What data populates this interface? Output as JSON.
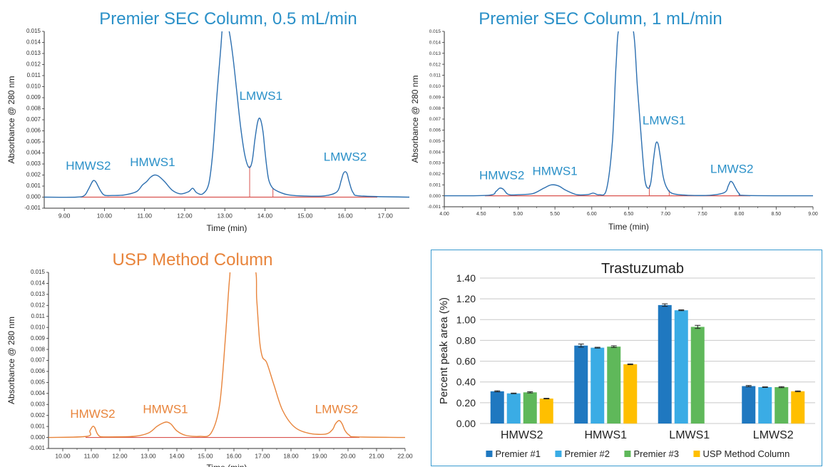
{
  "chart_data": [
    {
      "id": "a",
      "type": "line",
      "title": "Premier SEC Column, 0.5 mL/min",
      "xlabel": "Time (min)",
      "ylabel": "Absorbance @ 280 nm",
      "xlim": [
        8.5,
        17.6
      ],
      "ylim": [
        -0.001,
        0.015
      ],
      "xticks": [
        9.0,
        10.0,
        11.0,
        12.0,
        13.0,
        14.0,
        15.0,
        16.0,
        17.0
      ],
      "xtick_labels": [
        "9.00",
        "10.00",
        "11.00",
        "12.00",
        "13.00",
        "14.00",
        "15.00",
        "16.00",
        "17.00"
      ],
      "yticks": [
        -0.001,
        0.0,
        0.001,
        0.002,
        0.003,
        0.004,
        0.005,
        0.006,
        0.007,
        0.008,
        0.009,
        0.01,
        0.011,
        0.012,
        0.013,
        0.014,
        0.015
      ],
      "ytick_labels": [
        "-0.001",
        "0.000",
        "0.001",
        "0.002",
        "0.003",
        "0.004",
        "0.005",
        "0.006",
        "0.007",
        "0.008",
        "0.009",
        "0.010",
        "0.011",
        "0.012",
        "0.013",
        "0.014",
        "0.015"
      ],
      "baseline_range": [
        9.4,
        16.8
      ],
      "peak_markers": [
        13.62,
        14.2
      ],
      "x": [
        8.5,
        9.3,
        9.5,
        9.6,
        9.7,
        9.75,
        9.8,
        9.9,
        10.0,
        10.2,
        10.5,
        10.8,
        10.95,
        11.05,
        11.15,
        11.25,
        11.35,
        11.5,
        11.7,
        11.9,
        12.1,
        12.2,
        12.3,
        12.45,
        12.6,
        12.7,
        12.8,
        12.9,
        12.95,
        13.05,
        13.1,
        13.2,
        13.3,
        13.4,
        13.5,
        13.6,
        13.68,
        13.75,
        13.82,
        13.88,
        13.95,
        14.0,
        14.05,
        14.1,
        14.2,
        14.4,
        14.6,
        15.0,
        15.5,
        15.8,
        15.9,
        15.95,
        16.0,
        16.05,
        16.1,
        16.2,
        16.4,
        17.6
      ],
      "y": [
        0.0,
        0.0,
        0.00015,
        0.0007,
        0.0014,
        0.0015,
        0.0013,
        0.0006,
        0.00018,
        0.00015,
        0.0002,
        0.0005,
        0.0011,
        0.0014,
        0.0018,
        0.002,
        0.0019,
        0.0014,
        0.0006,
        0.0003,
        0.0005,
        0.0008,
        0.0004,
        0.0003,
        0.0012,
        0.004,
        0.009,
        0.0135,
        0.0155,
        0.0155,
        0.0152,
        0.0128,
        0.0095,
        0.0062,
        0.0038,
        0.0027,
        0.0032,
        0.0052,
        0.0068,
        0.0071,
        0.006,
        0.0042,
        0.0026,
        0.0015,
        0.0008,
        0.0004,
        0.0002,
        0.0001,
        0.00012,
        0.0005,
        0.0015,
        0.0021,
        0.0023,
        0.0021,
        0.0014,
        0.0004,
        0.0001,
        0.0
      ],
      "annotations": [
        {
          "text": "HMWS2",
          "x": 9.6,
          "y": 0.0025
        },
        {
          "text": "HMWS1",
          "x": 11.2,
          "y": 0.0028
        },
        {
          "text": "LMWS1",
          "x": 13.9,
          "y": 0.0088
        },
        {
          "text": "LMWS2",
          "x": 16.0,
          "y": 0.0033
        }
      ]
    },
    {
      "id": "b",
      "type": "line",
      "title": "Premier SEC Column, 1 mL/min",
      "xlabel": "Time (min)",
      "ylabel": "Absorbance @ 280 nm",
      "xlim": [
        4.0,
        9.0
      ],
      "ylim": [
        -0.001,
        0.015
      ],
      "xticks": [
        4.0,
        4.5,
        5.0,
        5.5,
        6.0,
        6.5,
        7.0,
        7.5,
        8.0,
        8.5,
        9.0
      ],
      "xtick_labels": [
        "4.00",
        "4.50",
        "5.00",
        "5.50",
        "6.00",
        "6.50",
        "7.00",
        "7.50",
        "8.00",
        "8.50",
        "9.00"
      ],
      "yticks": [
        -0.001,
        0.0,
        0.001,
        0.002,
        0.003,
        0.004,
        0.005,
        0.006,
        0.007,
        0.008,
        0.009,
        0.01,
        0.011,
        0.012,
        0.013,
        0.014,
        0.015
      ],
      "ytick_labels": [
        "-0.001",
        "0.000",
        "0.001",
        "0.002",
        "0.003",
        "0.004",
        "0.005",
        "0.006",
        "0.007",
        "0.008",
        "0.009",
        "0.010",
        "0.011",
        "0.012",
        "0.013",
        "0.014",
        "0.015"
      ],
      "baseline_range": [
        4.55,
        8.15
      ],
      "peak_markers": [
        6.78,
        7.05
      ],
      "x": [
        4.0,
        4.6,
        4.7,
        4.75,
        4.8,
        4.85,
        4.9,
        5.0,
        5.2,
        5.35,
        5.45,
        5.55,
        5.65,
        5.8,
        5.95,
        6.02,
        6.1,
        6.2,
        6.28,
        6.33,
        6.38,
        6.55,
        6.62,
        6.68,
        6.72,
        6.76,
        6.8,
        6.84,
        6.87,
        6.9,
        6.93,
        6.97,
        7.02,
        7.1,
        7.3,
        7.6,
        7.8,
        7.85,
        7.88,
        7.91,
        7.95,
        8.0,
        8.1,
        9.0
      ],
      "y": [
        0.0,
        5e-05,
        0.0004,
        0.0007,
        0.0006,
        0.0002,
        8e-05,
        0.0001,
        0.0002,
        0.0007,
        0.001,
        0.0009,
        0.0005,
        0.0001,
        0.00012,
        0.00025,
        0.0001,
        0.0006,
        0.005,
        0.012,
        0.0155,
        0.0155,
        0.0098,
        0.0045,
        0.0015,
        0.0007,
        0.0012,
        0.0035,
        0.0048,
        0.0047,
        0.0035,
        0.0017,
        0.0007,
        0.0002,
        5e-05,
        5e-05,
        0.0003,
        0.0009,
        0.0013,
        0.0012,
        0.0007,
        0.0002,
        3e-05,
        0.0
      ],
      "annotations": [
        {
          "text": "HMWS2",
          "x": 4.78,
          "y": 0.0015
        },
        {
          "text": "HMWS1",
          "x": 5.5,
          "y": 0.0019
        },
        {
          "text": "LMWS1",
          "x": 6.98,
          "y": 0.0065
        },
        {
          "text": "LMWS2",
          "x": 7.9,
          "y": 0.0021
        }
      ]
    },
    {
      "id": "c",
      "type": "line",
      "title": "USP Method Column",
      "xlabel": "Time (min)",
      "ylabel": "Absorbance @ 280 nm",
      "xlim": [
        9.5,
        22.0
      ],
      "ylim": [
        -0.001,
        0.015
      ],
      "xticks": [
        10.0,
        11.0,
        12.0,
        13.0,
        14.0,
        15.0,
        16.0,
        17.0,
        18.0,
        19.0,
        20.0,
        21.0,
        22.0
      ],
      "xtick_labels": [
        "10.00",
        "11.00",
        "12.00",
        "13.00",
        "14.00",
        "15.00",
        "16.00",
        "17.00",
        "18.00",
        "19.00",
        "20.00",
        "21.00",
        "22.00"
      ],
      "yticks": [
        -0.001,
        0.0,
        0.001,
        0.002,
        0.003,
        0.004,
        0.005,
        0.006,
        0.007,
        0.008,
        0.009,
        0.01,
        0.011,
        0.012,
        0.013,
        0.014,
        0.015
      ],
      "ytick_labels": [
        "-0.001",
        "0.000",
        "0.001",
        "0.002",
        "0.003",
        "0.004",
        "0.005",
        "0.006",
        "0.007",
        "0.008",
        "0.009",
        "0.010",
        "0.011",
        "0.012",
        "0.013",
        "0.014",
        "0.015"
      ],
      "baseline_range": [
        10.8,
        20.4
      ],
      "peak_markers": [],
      "x": [
        9.5,
        10.85,
        10.95,
        11.05,
        11.12,
        11.2,
        11.3,
        11.5,
        12.5,
        13.0,
        13.3,
        13.5,
        13.65,
        13.8,
        14.0,
        14.3,
        14.8,
        15.2,
        15.5,
        15.7,
        15.85,
        15.95,
        16.7,
        16.8,
        16.9,
        17.0,
        17.15,
        17.4,
        17.7,
        18.1,
        18.6,
        19.2,
        19.45,
        19.55,
        19.65,
        19.72,
        19.8,
        19.9,
        20.05,
        20.3,
        22.0
      ],
      "y": [
        0.0,
        0.0001,
        0.0006,
        0.001,
        0.0009,
        0.0004,
        0.0001,
        5e-05,
        0.0001,
        0.0004,
        0.001,
        0.0013,
        0.0014,
        0.0012,
        0.0006,
        0.0002,
        0.0001,
        0.0004,
        0.003,
        0.009,
        0.0145,
        0.0155,
        0.0155,
        0.0125,
        0.0088,
        0.0073,
        0.0068,
        0.0048,
        0.0025,
        0.001,
        0.0004,
        0.0003,
        0.0007,
        0.0012,
        0.0015,
        0.0015,
        0.0012,
        0.0006,
        0.0002,
        5e-05,
        0.0
      ],
      "annotations": [
        {
          "text": "HMWS2",
          "x": 11.05,
          "y": 0.0018
        },
        {
          "text": "HMWS1",
          "x": 13.6,
          "y": 0.0022
        },
        {
          "text": "LMWS2",
          "x": 19.6,
          "y": 0.0022
        }
      ]
    },
    {
      "id": "d",
      "type": "bar",
      "title": "Trastuzumab",
      "xlabel": "",
      "ylabel": "Percent peak area (%)",
      "ylim": [
        0,
        1.4
      ],
      "yticks": [
        0.0,
        0.2,
        0.4,
        0.6,
        0.8,
        1.0,
        1.2,
        1.4
      ],
      "ytick_labels": [
        "0.00",
        "0.20",
        "0.40",
        "0.60",
        "0.80",
        "1.00",
        "1.20",
        "1.40"
      ],
      "grid": true,
      "legend_position": "bottom",
      "categories": [
        "HMWS2",
        "HMWS1",
        "LMWS1",
        "LMWS2"
      ],
      "series": [
        {
          "name": "Premier #1",
          "color": "#1f78c0",
          "values": [
            0.31,
            0.75,
            1.14,
            0.36
          ],
          "errors": [
            0.005,
            0.015,
            0.012,
            0.006
          ]
        },
        {
          "name": "Premier #2",
          "color": "#3aace5",
          "values": [
            0.29,
            0.73,
            1.09,
            0.35
          ],
          "errors": [
            0.003,
            0.004,
            0.004,
            0.003
          ]
        },
        {
          "name": "Premier #3",
          "color": "#5fb85a",
          "values": [
            0.3,
            0.74,
            0.93,
            0.35
          ],
          "errors": [
            0.006,
            0.008,
            0.015,
            0.005
          ]
        },
        {
          "name": "USP Method Column",
          "color": "#ffbf00",
          "values": [
            0.24,
            0.57,
            null,
            0.31
          ],
          "errors": [
            0.003,
            0.004,
            0.0,
            0.004
          ]
        }
      ]
    }
  ],
  "colors": {
    "blue_trace": "#2c6fb0",
    "blue_title": "#2a90c8",
    "orange_trace": "#e8843b",
    "orange_title": "#e8843b",
    "baseline": "#d9534f",
    "axis": "#333333",
    "grid": "#c8c8c8",
    "frame": "#3a9bd0"
  }
}
